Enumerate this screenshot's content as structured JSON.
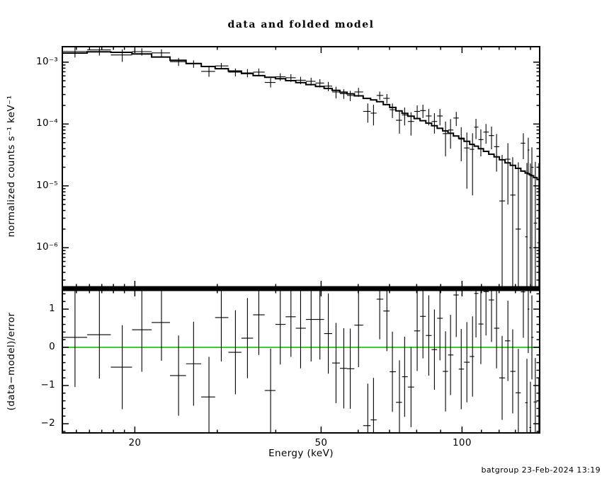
{
  "title": "data and folded model",
  "footer": "batgroup 23-Feb-2024 13:19",
  "colors": {
    "foreground": "#000000",
    "background": "#ffffff",
    "zero_line": "#00cc00"
  },
  "chart_data": [
    {
      "panel": "spectrum",
      "type": "line",
      "title": "data and folded model",
      "xlabel": "",
      "ylabel": "normalized counts s⁻¹ keV⁻¹",
      "xscale": "log",
      "yscale": "log",
      "xlim": [
        14,
        146.5
      ],
      "ylim": [
        2.3e-07,
        0.00178
      ],
      "grid": false,
      "x_major_ticks": [
        20,
        50,
        100
      ],
      "x_tick_labels": [
        "20",
        "50",
        "100"
      ],
      "y_major_ticks": [
        0.001,
        0.0001,
        1e-05,
        1e-06
      ],
      "y_tick_labels": [
        "10⁻³",
        "10⁻⁴",
        "10⁻⁵",
        "10⁻⁶"
      ],
      "model": {
        "e": [
          14,
          15.7,
          17.4,
          20,
          21.6,
          23.9,
          26.4,
          29.3,
          32.4,
          36.1,
          41.6,
          49.4,
          54.7,
          60.7,
          67.7,
          72.5,
          77.5,
          83.4,
          89.2,
          99,
          107,
          118,
          130.6,
          145,
          146.5
        ],
        "v": [
          0.00134,
          0.00146,
          0.00148,
          0.00141,
          0.0013,
          0.00114,
          0.00097,
          0.00083,
          0.00073,
          0.00062,
          0.00053,
          0.00041,
          0.00034,
          0.00028,
          0.000223,
          0.000171,
          0.000135,
          0.00011,
          8.7e-05,
          6e-05,
          4.4e-05,
          3e-05,
          2e-05,
          1.3e-05,
          1.25e-05
        ]
      },
      "points": {
        "e": [
          14.9,
          16.8,
          18.8,
          20.7,
          22.8,
          24.8,
          26.7,
          28.8,
          30.6,
          32.8,
          34.8,
          36.8,
          39.0,
          40.9,
          43.1,
          45.2,
          47.6,
          49.7,
          51.8,
          53.8,
          55.9,
          57.7,
          60.1,
          62.9,
          64.7,
          66.7,
          69.1,
          71.0,
          73.5,
          75.4,
          77.8,
          80.2,
          82.5,
          84.9,
          87.3,
          89.7,
          92.2,
          94.5,
          97.2,
          99.6,
          102.4,
          105.3,
          107.1,
          109.7,
          112.5,
          115.6,
          118.5,
          121.8,
          125.3,
          128.3,
          131.9,
          135.2,
          137.6,
          138.5,
          140.0,
          141.0,
          143.4,
          145.9
        ],
        "v": [
          0.00149,
          0.00158,
          0.00131,
          0.00148,
          0.00141,
          0.00102,
          0.00094,
          0.00071,
          0.00087,
          0.00069,
          0.00067,
          0.00069,
          0.00047,
          0.00058,
          0.00056,
          0.00051,
          0.00049,
          0.00046,
          0.00041,
          0.00033,
          0.00031,
          0.00029,
          0.00033,
          0.00016,
          0.00015,
          0.00029,
          0.00026,
          0.00017,
          0.000115,
          0.00014,
          0.00011,
          0.00016,
          0.000165,
          0.000135,
          0.00011,
          0.000135,
          7e-05,
          8e-05,
          0.000125,
          5.7e-05,
          4.1e-05,
          3.9e-05,
          8.9e-05,
          5.6e-05,
          7.4e-05,
          6.5e-05,
          4.3e-05,
          5.7e-06,
          2.7e-05,
          7.1e-06,
          2e-06,
          4.9e-05,
          1.5e-06,
          3.8e-05,
          1e-06,
          2e-05,
          2.5e-06,
          1.2e-06
        ],
        "ve": [
          0.0003,
          0.0003,
          0.0003,
          0.0002,
          0.0002,
          0.00015,
          0.00013,
          0.00013,
          0.0001,
          0.0001,
          0.0001,
          0.0001,
          8e-05,
          8e-05,
          8e-05,
          7e-05,
          7e-05,
          7e-05,
          7e-05,
          7e-05,
          5.5e-05,
          5.5e-05,
          5.5e-05,
          5.5e-05,
          5.5e-05,
          4.5e-05,
          4.5e-05,
          4.5e-05,
          4.5e-05,
          4.5e-05,
          4.5e-05,
          4e-05,
          4e-05,
          4e-05,
          4e-05,
          4e-05,
          4e-05,
          4e-05,
          3.2e-05,
          3.2e-05,
          3.2e-05,
          3.2e-05,
          3.2e-05,
          2.6e-05,
          2.6e-05,
          2.6e-05,
          2.6e-05,
          2.6e-05,
          2.2e-05,
          2.2e-05,
          2.2e-05,
          2.2e-05,
          2.2e-05,
          2.2e-05,
          2.2e-05,
          2.2e-05,
          2.2e-05,
          2.2e-05
        ]
      }
    },
    {
      "panel": "residuals",
      "type": "scatter",
      "xlabel": "Energy (keV)",
      "ylabel": "(data−model)/error",
      "xscale": "log",
      "yscale": "linear",
      "xlim": [
        14,
        146.5
      ],
      "ylim": [
        -2.24,
        1.5
      ],
      "grid": false,
      "zero_line": 0,
      "x_major_ticks": [
        20,
        50,
        100
      ],
      "x_tick_labels": [
        "20",
        "50",
        "100"
      ],
      "y_major_ticks": [
        1,
        0,
        -1,
        -2
      ],
      "y_tick_labels": [
        "1",
        "0",
        "−1",
        "−2"
      ],
      "points": {
        "e": [
          14.9,
          16.8,
          18.8,
          20.7,
          22.8,
          24.8,
          26.7,
          28.8,
          30.6,
          32.8,
          34.8,
          36.8,
          39.0,
          40.9,
          43.1,
          45.2,
          47.6,
          49.7,
          51.8,
          53.8,
          55.9,
          57.7,
          60.1,
          62.9,
          64.7,
          66.7,
          69.1,
          71.0,
          73.5,
          75.4,
          77.8,
          80.2,
          82.5,
          84.9,
          87.3,
          89.7,
          92.2,
          94.5,
          97.2,
          99.6,
          102.4,
          105.3,
          107.1,
          109.7,
          112.5,
          115.6,
          118.5,
          121.8,
          125.3,
          128.3,
          131.9,
          135.2,
          137.6,
          138.5,
          140.0,
          141.0,
          143.4,
          145.9
        ],
        "r": [
          0.26,
          0.33,
          -0.52,
          0.46,
          0.65,
          -0.74,
          -0.43,
          -1.3,
          0.78,
          -0.13,
          0.24,
          0.85,
          -1.13,
          0.6,
          0.8,
          0.5,
          0.73,
          0.73,
          0.36,
          -0.41,
          -0.55,
          -0.56,
          0.58,
          -2.05,
          -1.9,
          1.26,
          0.95,
          -0.64,
          -1.44,
          -0.77,
          -1.04,
          0.43,
          0.81,
          0.31,
          -0.06,
          0.76,
          -0.63,
          -0.2,
          1.37,
          -0.57,
          -0.39,
          -0.24,
          1.41,
          0.61,
          1.46,
          1.24,
          0.5,
          -0.8,
          0.17,
          -0.63,
          -1.19,
          1.45,
          -1.45,
          1.0,
          -2.1,
          0.26,
          -1.43,
          -2.0
        ],
        "re": [
          1.3,
          1.15,
          1.1,
          1.1,
          1.0,
          1.05,
          1.1,
          1.05,
          1.15,
          1.1,
          1.05,
          1.05,
          1.1,
          1.05,
          1.05,
          1.05,
          1.1,
          1.05,
          1.05,
          1.05,
          1.05,
          1.05,
          1.1,
          1.1,
          1.1,
          1.05,
          1.05,
          1.05,
          1.1,
          1.05,
          1.05,
          1.05,
          1.1,
          1.05,
          1.05,
          1.1,
          1.05,
          1.05,
          1.1,
          1.05,
          1.05,
          1.05,
          1.15,
          1.05,
          1.15,
          1.1,
          1.05,
          1.1,
          1.05,
          1.1,
          1.15,
          1.2,
          1.15,
          1.15,
          1.2,
          1.1,
          1.15,
          1.2
        ]
      }
    }
  ]
}
